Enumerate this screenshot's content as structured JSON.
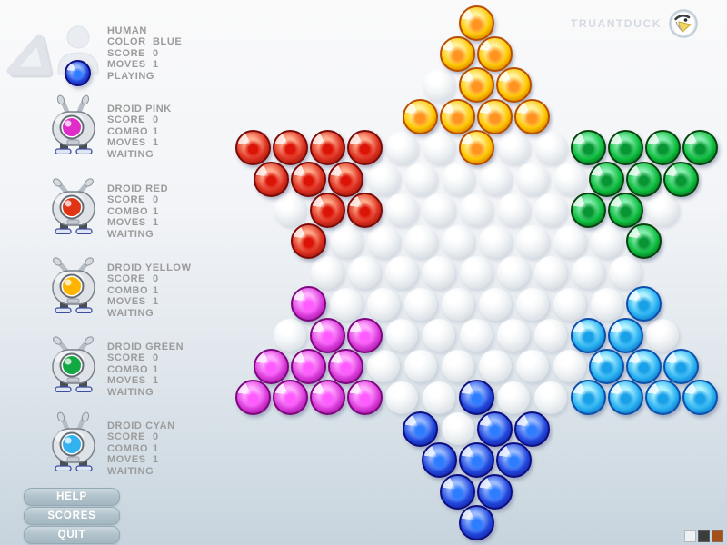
{
  "brand": {
    "name": "TRUANTDUCK"
  },
  "players": [
    {
      "name": "HUMAN",
      "eye": "#2a5ae8",
      "stats": [
        {
          "label": "COLOR",
          "value": "BLUE"
        },
        {
          "label": "SCORE",
          "value": "0"
        },
        {
          "label": "MOVES",
          "value": "1"
        }
      ],
      "status": "PLAYING"
    },
    {
      "name": "DROID PINK",
      "eye": "#e02cc8",
      "stats": [
        {
          "label": "SCORE",
          "value": "0"
        },
        {
          "label": "COMBO",
          "value": "1"
        },
        {
          "label": "MOVES",
          "value": "1"
        }
      ],
      "status": "WAITING"
    },
    {
      "name": "DROID RED",
      "eye": "#e03414",
      "stats": [
        {
          "label": "SCORE",
          "value": "0"
        },
        {
          "label": "COMBO",
          "value": "1"
        },
        {
          "label": "MOVES",
          "value": "1"
        }
      ],
      "status": "WAITING"
    },
    {
      "name": "DROID YELLOW",
      "eye": "#ffb400",
      "stats": [
        {
          "label": "SCORE",
          "value": "0"
        },
        {
          "label": "COMBO",
          "value": "1"
        },
        {
          "label": "MOVES",
          "value": "1"
        }
      ],
      "status": "WAITING"
    },
    {
      "name": "DROID GREEN",
      "eye": "#12a844",
      "stats": [
        {
          "label": "SCORE",
          "value": "0"
        },
        {
          "label": "COMBO",
          "value": "1"
        },
        {
          "label": "MOVES",
          "value": "1"
        }
      ],
      "status": "WAITING"
    },
    {
      "name": "DROID CYAN",
      "eye": "#34b2f0",
      "stats": [
        {
          "label": "SCORE",
          "value": "0"
        },
        {
          "label": "COMBO",
          "value": "1"
        },
        {
          "label": "MOVES",
          "value": "1"
        }
      ],
      "status": "WAITING"
    }
  ],
  "buttons": [
    {
      "label": "HELP"
    },
    {
      "label": "SCORES"
    },
    {
      "label": "QUIT"
    }
  ],
  "board": {
    "row_counts": [
      1,
      2,
      3,
      4,
      13,
      12,
      11,
      10,
      9,
      10,
      11,
      12,
      13,
      4,
      3,
      2,
      1
    ],
    "marbles": [
      {
        "color": "yellow",
        "cells": [
          [
            1,
            1
          ],
          [
            2,
            1
          ],
          [
            2,
            2
          ],
          [
            3,
            2
          ],
          [
            3,
            3
          ],
          [
            4,
            1
          ],
          [
            4,
            2
          ],
          [
            4,
            3
          ],
          [
            4,
            4
          ],
          [
            5,
            7
          ]
        ]
      },
      {
        "color": "red",
        "cells": [
          [
            5,
            1
          ],
          [
            5,
            2
          ],
          [
            5,
            3
          ],
          [
            5,
            4
          ],
          [
            6,
            1
          ],
          [
            6,
            2
          ],
          [
            6,
            3
          ],
          [
            7,
            2
          ],
          [
            7,
            3
          ],
          [
            8,
            1
          ]
        ]
      },
      {
        "color": "green",
        "cells": [
          [
            5,
            10
          ],
          [
            5,
            11
          ],
          [
            5,
            12
          ],
          [
            5,
            13
          ],
          [
            6,
            10
          ],
          [
            6,
            11
          ],
          [
            6,
            12
          ],
          [
            7,
            9
          ],
          [
            7,
            10
          ],
          [
            8,
            10
          ]
        ]
      },
      {
        "color": "magenta",
        "cells": [
          [
            10,
            1
          ],
          [
            11,
            2
          ],
          [
            11,
            3
          ],
          [
            12,
            1
          ],
          [
            12,
            2
          ],
          [
            12,
            3
          ],
          [
            13,
            1
          ],
          [
            13,
            2
          ],
          [
            13,
            3
          ],
          [
            13,
            4
          ]
        ]
      },
      {
        "color": "cyan",
        "cells": [
          [
            10,
            10
          ],
          [
            11,
            9
          ],
          [
            11,
            10
          ],
          [
            12,
            10
          ],
          [
            12,
            11
          ],
          [
            12,
            12
          ],
          [
            13,
            10
          ],
          [
            13,
            11
          ],
          [
            13,
            12
          ],
          [
            13,
            13
          ]
        ]
      },
      {
        "color": "blue",
        "cells": [
          [
            13,
            7
          ],
          [
            14,
            1
          ],
          [
            14,
            3
          ],
          [
            14,
            4
          ],
          [
            15,
            1
          ],
          [
            15,
            2
          ],
          [
            15,
            3
          ],
          [
            16,
            1
          ],
          [
            16,
            2
          ],
          [
            17,
            1
          ]
        ]
      }
    ],
    "palette": {
      "yellow": {
        "rim": "#b84e00",
        "body": "#ffc600",
        "light": "#fff29c",
        "core": "#ff9420"
      },
      "red": {
        "rim": "#7c0a06",
        "body": "#dd3020",
        "light": "#ffac8c",
        "core": "#dc1408"
      },
      "green": {
        "rim": "#07420f",
        "body": "#0cbe3e",
        "light": "#86eeae",
        "core": "#089634"
      },
      "magenta": {
        "rim": "#7e077e",
        "body": "#dd3cdd",
        "light": "#ffaeff",
        "core": "#ff5cff"
      },
      "cyan": {
        "rim": "#0a50ac",
        "body": "#28b2f2",
        "light": "#b2f2ff",
        "core": "#18a0e8"
      },
      "blue": {
        "rim": "#0e0e80",
        "body": "#2148de",
        "light": "#9cbcff",
        "core": "#2e7cff"
      }
    }
  },
  "swatches": [
    "#eef2f5",
    "#3c3c3c",
    "#a4501a"
  ]
}
